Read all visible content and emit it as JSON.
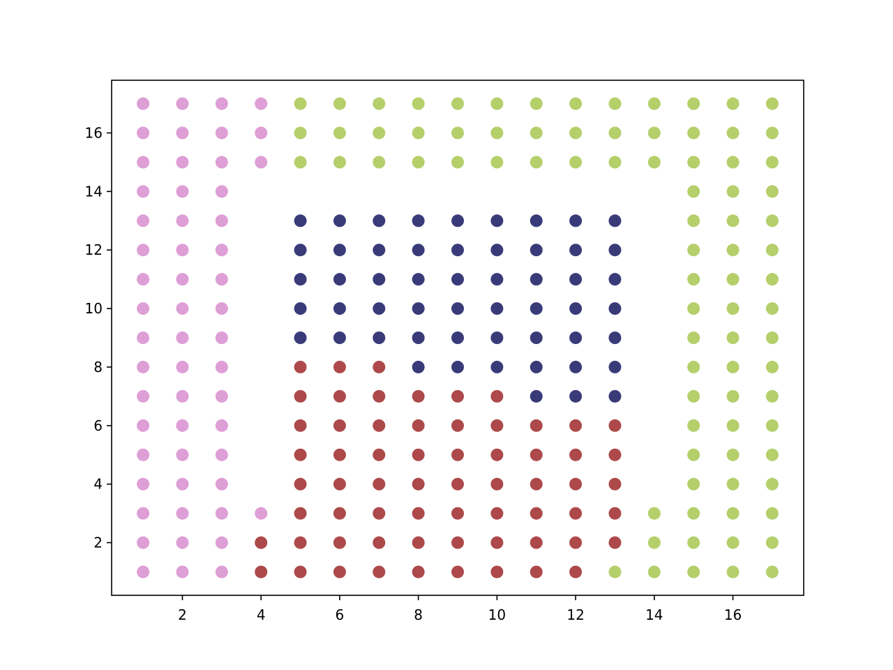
{
  "chart_data": {
    "type": "scatter",
    "xlim": [
      0.2,
      17.8
    ],
    "ylim": [
      0.2,
      17.8
    ],
    "xticks": [
      2,
      4,
      6,
      8,
      10,
      12,
      14,
      16
    ],
    "yticks": [
      2,
      4,
      6,
      8,
      10,
      12,
      14,
      16
    ],
    "series": [
      {
        "color": "#de9ed6",
        "x": [
          1,
          2,
          3,
          1,
          2,
          3,
          1,
          2,
          3,
          4,
          1,
          2,
          3,
          1,
          2,
          3,
          1,
          2,
          3,
          1,
          2,
          3,
          1,
          2,
          3,
          1,
          2,
          3,
          1,
          2,
          3,
          1,
          2,
          3,
          1,
          2,
          3,
          1,
          2,
          3,
          1,
          2,
          3,
          1,
          2,
          3,
          4,
          1,
          2,
          3,
          4,
          1,
          2,
          3,
          4
        ],
        "y": [
          1,
          1,
          1,
          2,
          2,
          2,
          3,
          3,
          3,
          3,
          4,
          4,
          4,
          5,
          5,
          5,
          6,
          6,
          6,
          7,
          7,
          7,
          8,
          8,
          8,
          9,
          9,
          9,
          10,
          10,
          10,
          11,
          11,
          11,
          12,
          12,
          12,
          13,
          13,
          13,
          14,
          14,
          14,
          15,
          15,
          15,
          15,
          16,
          16,
          16,
          16,
          17,
          17,
          17,
          17
        ]
      },
      {
        "color": "#b5cf6b",
        "x": [
          13,
          14,
          15,
          16,
          17,
          14,
          15,
          16,
          17,
          14,
          15,
          16,
          17,
          15,
          16,
          17,
          15,
          16,
          17,
          15,
          16,
          17,
          15,
          16,
          17,
          15,
          16,
          17,
          15,
          16,
          17,
          15,
          16,
          17,
          15,
          16,
          17,
          15,
          16,
          17,
          15,
          16,
          17,
          15,
          16,
          17,
          5,
          6,
          7,
          8,
          9,
          10,
          11,
          12,
          13,
          14,
          15,
          16,
          17,
          5,
          6,
          7,
          8,
          9,
          10,
          11,
          12,
          13,
          14,
          15,
          16,
          17,
          5,
          6,
          7,
          8,
          9,
          10,
          11,
          12,
          13,
          14,
          15,
          16,
          17
        ],
        "y": [
          1,
          1,
          1,
          1,
          1,
          2,
          2,
          2,
          2,
          3,
          3,
          3,
          3,
          4,
          4,
          4,
          5,
          5,
          5,
          6,
          6,
          6,
          7,
          7,
          7,
          8,
          8,
          8,
          9,
          9,
          9,
          10,
          10,
          10,
          11,
          11,
          11,
          12,
          12,
          12,
          13,
          13,
          13,
          14,
          14,
          14,
          15,
          15,
          15,
          15,
          15,
          15,
          15,
          15,
          15,
          15,
          15,
          15,
          15,
          16,
          16,
          16,
          16,
          16,
          16,
          16,
          16,
          16,
          16,
          16,
          16,
          16,
          17,
          17,
          17,
          17,
          17,
          17,
          17,
          17,
          17,
          17,
          17,
          17,
          17
        ]
      },
      {
        "color": "#393b79",
        "x": [
          11,
          12,
          13,
          8,
          9,
          10,
          11,
          12,
          13,
          5,
          6,
          7,
          8,
          9,
          10,
          11,
          12,
          13,
          5,
          6,
          7,
          8,
          9,
          10,
          11,
          12,
          13,
          5,
          6,
          7,
          8,
          9,
          10,
          11,
          12,
          13,
          5,
          6,
          7,
          8,
          9,
          10,
          11,
          12,
          13,
          5,
          6,
          7,
          8,
          9,
          10,
          11,
          12,
          13
        ],
        "y": [
          7,
          7,
          7,
          8,
          8,
          8,
          8,
          8,
          8,
          9,
          9,
          9,
          9,
          9,
          9,
          9,
          9,
          9,
          10,
          10,
          10,
          10,
          10,
          10,
          10,
          10,
          10,
          11,
          11,
          11,
          11,
          11,
          11,
          11,
          11,
          11,
          12,
          12,
          12,
          12,
          12,
          12,
          12,
          12,
          12,
          13,
          13,
          13,
          13,
          13,
          13,
          13,
          13,
          13
        ]
      },
      {
        "color": "#ad494a",
        "x": [
          4,
          5,
          6,
          7,
          8,
          9,
          10,
          11,
          12,
          4,
          5,
          6,
          7,
          8,
          9,
          10,
          11,
          12,
          13,
          5,
          6,
          7,
          8,
          9,
          10,
          11,
          12,
          13,
          5,
          6,
          7,
          8,
          9,
          10,
          11,
          12,
          13,
          5,
          6,
          7,
          8,
          9,
          10,
          11,
          12,
          13,
          5,
          6,
          7,
          8,
          9,
          10,
          11,
          12,
          13,
          5,
          6,
          7,
          8,
          9,
          10,
          5,
          6,
          7
        ],
        "y": [
          1,
          1,
          1,
          1,
          1,
          1,
          1,
          1,
          1,
          2,
          2,
          2,
          2,
          2,
          2,
          2,
          2,
          2,
          2,
          3,
          3,
          3,
          3,
          3,
          3,
          3,
          3,
          3,
          4,
          4,
          4,
          4,
          4,
          4,
          4,
          4,
          4,
          5,
          5,
          5,
          5,
          5,
          5,
          5,
          5,
          5,
          6,
          6,
          6,
          6,
          6,
          6,
          6,
          6,
          6,
          7,
          7,
          7,
          7,
          7,
          7,
          8,
          8,
          8
        ]
      }
    ]
  }
}
